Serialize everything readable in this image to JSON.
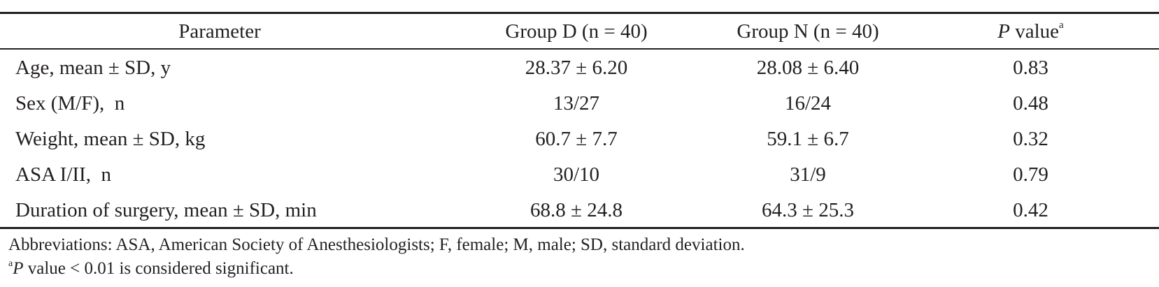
{
  "table": {
    "headers": {
      "parameter": "Parameter",
      "group_d": "Group D (n = 40)",
      "group_n": "Group N (n = 40)",
      "p_label_italic": "P",
      "p_label_rest": " value",
      "p_superscript": "a"
    },
    "rows": [
      {
        "parameter": "Age, mean ± SD, y",
        "group_d": "28.37 ± 6.20",
        "group_n": "28.08 ± 6.40",
        "p_value": "0.83"
      },
      {
        "parameter": "Sex (M/F),  n",
        "group_d": "13/27",
        "group_n": "16/24",
        "p_value": "0.48"
      },
      {
        "parameter": "Weight, mean ± SD, kg",
        "group_d": "60.7 ± 7.7",
        "group_n": "59.1 ± 6.7",
        "p_value": "0.32"
      },
      {
        "parameter": "ASA I/II,  n",
        "group_d": "30/10",
        "group_n": "31/9",
        "p_value": "0.79"
      },
      {
        "parameter": "Duration of surgery, mean ± SD, min",
        "group_d": "68.8 ± 24.8",
        "group_n": "64.3 ± 25.3",
        "p_value": "0.42"
      }
    ]
  },
  "footnotes": {
    "abbreviations": "Abbreviations: ASA, American Society of Anesthesiologists; F, female; M, male; SD, standard deviation.",
    "note_superscript": "a",
    "note_italic": "P",
    "note_rest": " value < 0.01 is considered significant."
  }
}
